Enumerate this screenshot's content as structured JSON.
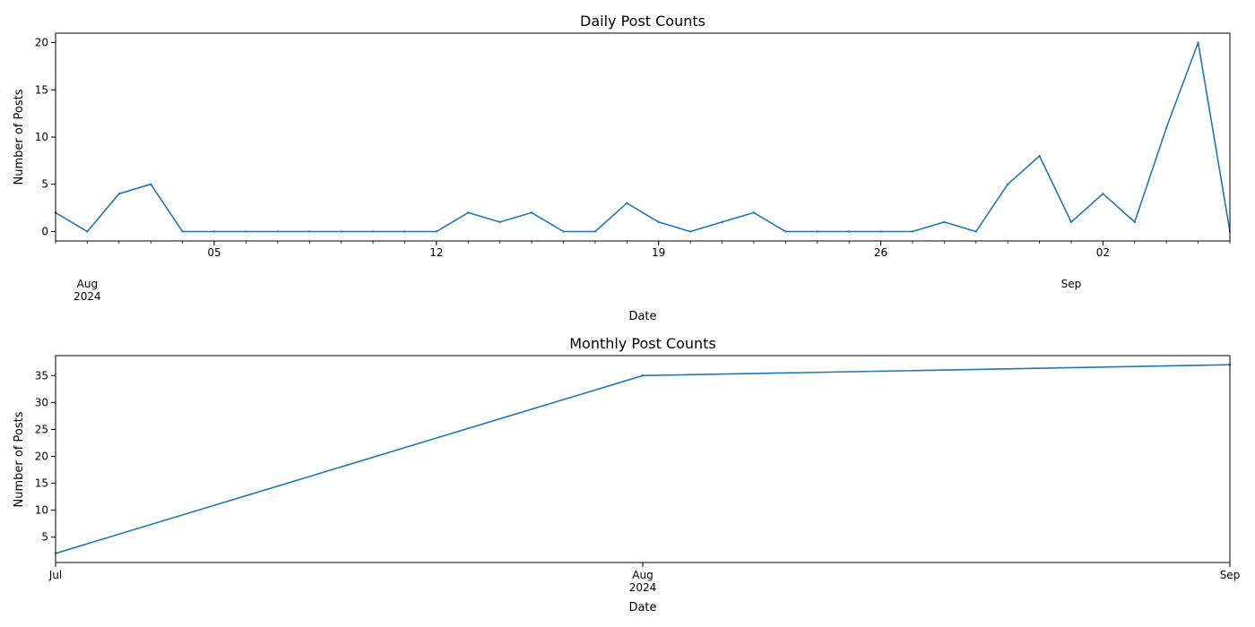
{
  "chart_data": [
    {
      "type": "line",
      "title": "Daily Post Counts",
      "xlabel": "Date",
      "ylabel": "Number of Posts",
      "ylim": [
        -1,
        21
      ],
      "yticks": [
        0,
        5,
        10,
        15,
        20
      ],
      "xlim": [
        "2024-07-31",
        "2024-09-06"
      ],
      "major_ticks": [
        {
          "date": "2024-08-05",
          "label": "05"
        },
        {
          "date": "2024-08-12",
          "label": "12"
        },
        {
          "date": "2024-08-19",
          "label": "19"
        },
        {
          "date": "2024-08-26",
          "label": "26"
        },
        {
          "date": "2024-09-02",
          "label": "02"
        }
      ],
      "month_labels": [
        {
          "date": "2024-08-01",
          "label": "Aug",
          "sublabel": "2024"
        },
        {
          "date": "2024-09-01",
          "label": "Sep",
          "sublabel": ""
        }
      ],
      "grid": false,
      "color": "#1f77b4",
      "series": [
        {
          "x": [
            "2024-07-31",
            "2024-08-01",
            "2024-08-02",
            "2024-08-03",
            "2024-08-04",
            "2024-08-05",
            "2024-08-06",
            "2024-08-07",
            "2024-08-08",
            "2024-08-09",
            "2024-08-10",
            "2024-08-11",
            "2024-08-12",
            "2024-08-13",
            "2024-08-14",
            "2024-08-15",
            "2024-08-16",
            "2024-08-17",
            "2024-08-18",
            "2024-08-19",
            "2024-08-20",
            "2024-08-21",
            "2024-08-22",
            "2024-08-23",
            "2024-08-24",
            "2024-08-25",
            "2024-08-26",
            "2024-08-27",
            "2024-08-28",
            "2024-08-29",
            "2024-08-30",
            "2024-08-31",
            "2024-09-01",
            "2024-09-02",
            "2024-09-03",
            "2024-09-04",
            "2024-09-05",
            "2024-09-06"
          ],
          "values": [
            2,
            0,
            4,
            5,
            0,
            0,
            0,
            0,
            0,
            0,
            0,
            0,
            0,
            2,
            1,
            2,
            0,
            0,
            3,
            1,
            0,
            1,
            2,
            0,
            0,
            0,
            0,
            0,
            1,
            0,
            5,
            8,
            1,
            4,
            1,
            11,
            20,
            0
          ]
        }
      ]
    },
    {
      "type": "line",
      "title": "Monthly Post Counts",
      "xlabel": "Date",
      "ylabel": "Number of Posts",
      "ylim": [
        0.3,
        38.7
      ],
      "yticks": [
        5,
        10,
        15,
        20,
        25,
        30,
        35
      ],
      "xlim": [
        "2024-07-01",
        "2024-09-01"
      ],
      "month_labels": [
        {
          "date": "2024-07-01",
          "label": "Jul",
          "sublabel": ""
        },
        {
          "date": "2024-08-01",
          "label": "Aug",
          "sublabel": "2024"
        },
        {
          "date": "2024-09-01",
          "label": "Sep",
          "sublabel": ""
        }
      ],
      "grid": false,
      "color": "#1f77b4",
      "series": [
        {
          "x": [
            "2024-07-01",
            "2024-08-01",
            "2024-09-01"
          ],
          "values": [
            2,
            35,
            37
          ]
        }
      ]
    }
  ]
}
